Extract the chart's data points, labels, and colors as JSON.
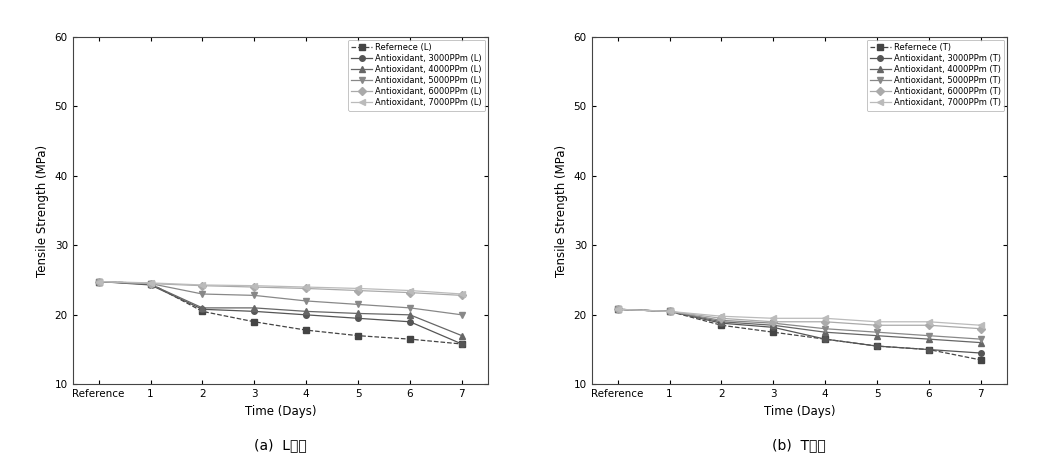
{
  "xlabel": "Time (Days)",
  "ylabel": "Tensile Strength (MPa)",
  "ylim": [
    10,
    60
  ],
  "yticks": [
    10,
    20,
    30,
    40,
    50,
    60
  ],
  "xtick_labels": [
    "Reference",
    "1",
    "2",
    "3",
    "4",
    "5",
    "6",
    "7"
  ],
  "caption_a": "(a)  L방향",
  "caption_b": "(b)  T방향",
  "left_series": [
    {
      "label": "Refernece (L)",
      "marker": "s",
      "linestyle": "--",
      "color": "#444444",
      "markerface": "#444444",
      "values": [
        24.8,
        24.5,
        20.5,
        19.0,
        17.8,
        17.0,
        16.5,
        15.8
      ]
    },
    {
      "label": "Antioxidant, 3000PPm (L)",
      "marker": "o",
      "linestyle": "-",
      "color": "#555555",
      "markerface": "#555555",
      "values": [
        24.8,
        24.3,
        20.8,
        20.5,
        20.0,
        19.5,
        19.0,
        15.8
      ]
    },
    {
      "label": "Antioxidant, 4000PPm (L)",
      "marker": "^",
      "linestyle": "-",
      "color": "#666666",
      "markerface": "#666666",
      "values": [
        24.8,
        24.4,
        21.0,
        21.0,
        20.5,
        20.2,
        20.0,
        17.0
      ]
    },
    {
      "label": "Antioxidant, 5000PPm (L)",
      "marker": "v",
      "linestyle": "-",
      "color": "#888888",
      "markerface": "#888888",
      "values": [
        24.8,
        24.5,
        23.0,
        22.8,
        22.0,
        21.5,
        21.0,
        20.0
      ]
    },
    {
      "label": "Antioxidant, 6000PPm (L)",
      "marker": "D",
      "linestyle": "-",
      "color": "#aaaaaa",
      "markerface": "#aaaaaa",
      "values": [
        24.8,
        24.5,
        24.2,
        24.0,
        23.8,
        23.5,
        23.2,
        22.8
      ]
    },
    {
      "label": "Antioxidant, 7000PPm (L)",
      "marker": "<",
      "linestyle": "-",
      "color": "#bbbbbb",
      "markerface": "#bbbbbb",
      "values": [
        24.8,
        24.6,
        24.3,
        24.2,
        24.0,
        23.8,
        23.5,
        23.0
      ]
    }
  ],
  "right_series": [
    {
      "label": "Refernece (T)",
      "marker": "s",
      "linestyle": "--",
      "color": "#444444",
      "markerface": "#444444",
      "values": [
        20.8,
        20.5,
        18.5,
        17.5,
        16.5,
        15.5,
        15.0,
        13.5
      ]
    },
    {
      "label": "Antioxidant, 3000PPm (T)",
      "marker": "o",
      "linestyle": "-",
      "color": "#555555",
      "markerface": "#555555",
      "values": [
        20.8,
        20.5,
        18.8,
        18.2,
        16.5,
        15.5,
        15.0,
        14.5
      ]
    },
    {
      "label": "Antioxidant, 4000PPm (T)",
      "marker": "^",
      "linestyle": "-",
      "color": "#666666",
      "markerface": "#666666",
      "values": [
        20.8,
        20.5,
        19.0,
        18.5,
        17.5,
        17.0,
        16.5,
        16.0
      ]
    },
    {
      "label": "Antioxidant, 5000PPm (T)",
      "marker": "v",
      "linestyle": "-",
      "color": "#888888",
      "markerface": "#888888",
      "values": [
        20.8,
        20.5,
        19.2,
        18.8,
        18.0,
        17.5,
        17.0,
        16.5
      ]
    },
    {
      "label": "Antioxidant, 6000PPm (T)",
      "marker": "D",
      "linestyle": "-",
      "color": "#aaaaaa",
      "markerface": "#aaaaaa",
      "values": [
        20.8,
        20.5,
        19.5,
        19.0,
        19.0,
        18.5,
        18.5,
        18.0
      ]
    },
    {
      "label": "Antioxidant, 7000PPm (T)",
      "marker": "<",
      "linestyle": "-",
      "color": "#bbbbbb",
      "markerface": "#bbbbbb",
      "values": [
        20.8,
        20.5,
        19.8,
        19.5,
        19.5,
        19.0,
        19.0,
        18.5
      ]
    }
  ]
}
